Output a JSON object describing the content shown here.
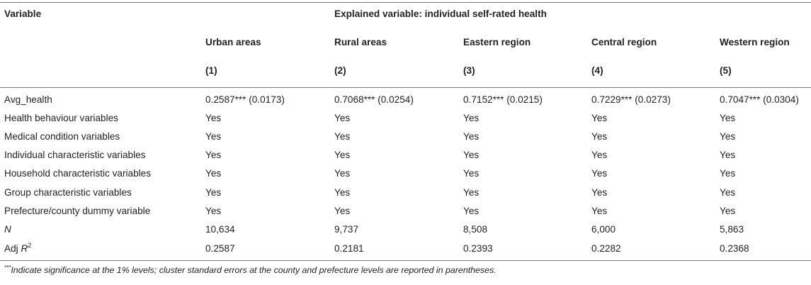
{
  "table": {
    "variable_header": "Variable",
    "spanning_header": "Explained variable: individual self-rated health",
    "columns": [
      {
        "label": "Urban areas",
        "number": "(1)"
      },
      {
        "label": "Rural areas",
        "number": "(2)"
      },
      {
        "label": "Eastern region",
        "number": "(3)"
      },
      {
        "label": "Central region",
        "number": "(4)"
      },
      {
        "label": "Western region",
        "number": "(5)"
      }
    ],
    "rows": [
      {
        "label": "Avg_health",
        "values": [
          "0.2587*** (0.0173)",
          "0.7068*** (0.0254)",
          "0.7152*** (0.0215)",
          "0.7229*** (0.0273)",
          "0.7047*** (0.0304)"
        ]
      },
      {
        "label": "Health behaviour variables",
        "values": [
          "Yes",
          "Yes",
          "Yes",
          "Yes",
          "Yes"
        ]
      },
      {
        "label": "Medical condition variables",
        "values": [
          "Yes",
          "Yes",
          "Yes",
          "Yes",
          "Yes"
        ]
      },
      {
        "label": "Individual characteristic variables",
        "values": [
          "Yes",
          "Yes",
          "Yes",
          "Yes",
          "Yes"
        ]
      },
      {
        "label": "Household characteristic variables",
        "values": [
          "Yes",
          "Yes",
          "Yes",
          "Yes",
          "Yes"
        ]
      },
      {
        "label": "Group characteristic variables",
        "values": [
          "Yes",
          "Yes",
          "Yes",
          "Yes",
          "Yes"
        ]
      },
      {
        "label": "Prefecture/county dummy variable",
        "values": [
          "Yes",
          "Yes",
          "Yes",
          "Yes",
          "Yes"
        ]
      },
      {
        "label": "N",
        "values": [
          "10,634",
          "9,737",
          "8,508",
          "6,000",
          "5,863"
        ]
      }
    ],
    "adj_row": {
      "label_prefix": "Adj ",
      "label_var": "R",
      "label_sup": "2",
      "values": [
        "0.2587",
        "0.2181",
        "0.2393",
        "0.2282",
        "0.2368"
      ]
    }
  },
  "footnote": {
    "marker": "***",
    "text": "Indicate significance at the 1% levels; cluster standard errors at the county and prefecture levels are reported in parentheses."
  }
}
